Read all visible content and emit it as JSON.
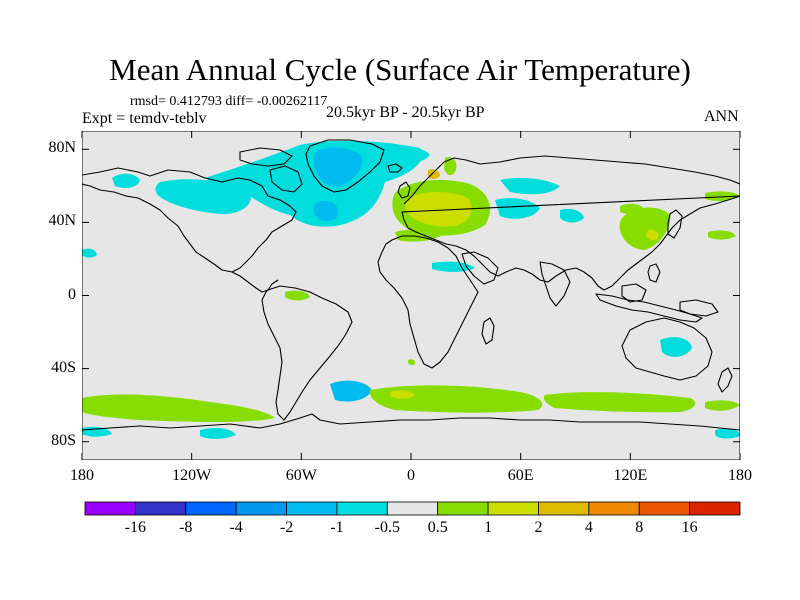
{
  "title": "Mean Annual Cycle (Surface Air Temperature)",
  "stats_line": "rmsd= 0.412793 diff= -0.00262117",
  "experiment": "Expt = temdv-teblv",
  "period": "20.5kyr BP - 20.5kyr BP",
  "season": "ANN",
  "map": {
    "projection": "cylindrical equidistant",
    "lon_range": [
      -180,
      180
    ],
    "lat_range": [
      -90,
      90
    ],
    "y_ticks": [
      {
        "label": "80N",
        "lat": 80
      },
      {
        "label": "40N",
        "lat": 40
      },
      {
        "label": "0",
        "lat": 0
      },
      {
        "label": "40S",
        "lat": -40
      },
      {
        "label": "80S",
        "lat": -80
      }
    ],
    "x_ticks": [
      {
        "label": "180",
        "lon": -180
      },
      {
        "label": "120W",
        "lon": -120
      },
      {
        "label": "60W",
        "lon": -60
      },
      {
        "label": "0",
        "lon": 0
      },
      {
        "label": "60E",
        "lon": 60
      },
      {
        "label": "120E",
        "lon": 120
      },
      {
        "label": "180",
        "lon": 180
      }
    ],
    "background_color": "#e6e6e6"
  },
  "colorbar": {
    "colors": [
      "#9a00ff",
      "#3333cc",
      "#0066ff",
      "#0099ee",
      "#00bbee",
      "#00dddd",
      "#e6e6e6",
      "#88dd00",
      "#ccdd00",
      "#ddbb00",
      "#ee8800",
      "#ee5500",
      "#dd2200"
    ],
    "labels": [
      "-16",
      "-8",
      "-4",
      "-2",
      "-1",
      "-0.5",
      "0.5",
      "1",
      "2",
      "4",
      "8",
      "16"
    ]
  },
  "colors": {
    "cold_light": "#00dddd",
    "cold_mid": "#00bbee",
    "warm_light": "#88dd00",
    "warm_mid": "#ccdd00",
    "warm_strong": "#ddbb00"
  }
}
